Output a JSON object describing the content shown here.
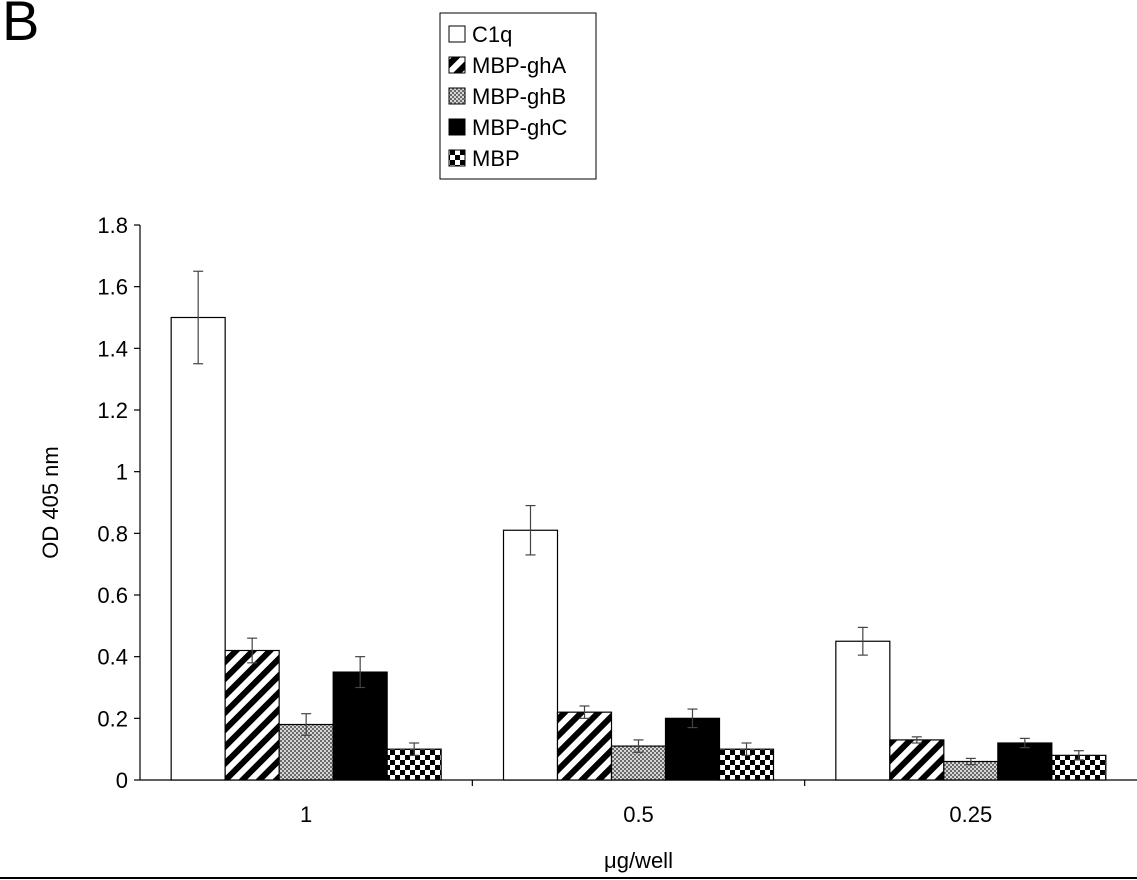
{
  "panel_label": "B",
  "chart_data": {
    "type": "bar",
    "title": "",
    "xlabel": "μg/well",
    "ylabel": "OD 405 nm",
    "ylim": [
      0,
      1.8
    ],
    "yticks": [
      "0",
      "0.2",
      "0.4",
      "0.6",
      "0.8",
      "1",
      "1.2",
      "1.4",
      "1.6",
      "1.8"
    ],
    "categories": [
      "1",
      "0.5",
      "0.25"
    ],
    "legend_position": "top-center",
    "grid": false,
    "series": [
      {
        "name": "C1q",
        "pattern": "white",
        "values": [
          1.5,
          0.81,
          0.45
        ],
        "errors": [
          0.15,
          0.08,
          0.045
        ]
      },
      {
        "name": "MBP-ghA",
        "pattern": "diagonal",
        "values": [
          0.42,
          0.22,
          0.13
        ],
        "errors": [
          0.04,
          0.02,
          0.01
        ]
      },
      {
        "name": "MBP-ghB",
        "pattern": "grid",
        "values": [
          0.18,
          0.11,
          0.06
        ],
        "errors": [
          0.035,
          0.02,
          0.01
        ]
      },
      {
        "name": "MBP-ghC",
        "pattern": "black",
        "values": [
          0.35,
          0.2,
          0.12
        ],
        "errors": [
          0.05,
          0.03,
          0.015
        ]
      },
      {
        "name": "MBP",
        "pattern": "checker",
        "values": [
          0.1,
          0.1,
          0.08
        ],
        "errors": [
          0.02,
          0.02,
          0.015
        ]
      }
    ]
  }
}
